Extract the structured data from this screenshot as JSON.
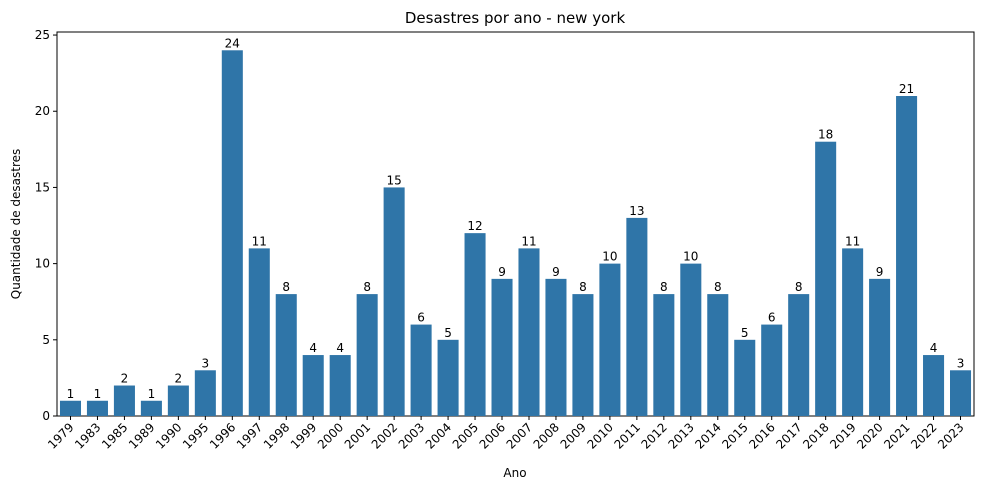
{
  "chart_data": {
    "type": "bar",
    "title": "Desastres por ano - new york",
    "xlabel": "Ano",
    "ylabel": "Quantidade de desastres",
    "ylim": [
      0,
      25.2
    ],
    "yticks": [
      0,
      5,
      10,
      15,
      20,
      25
    ],
    "grid": false,
    "bar_color": "#2f75a8",
    "categories": [
      "1979",
      "1983",
      "1985",
      "1989",
      "1990",
      "1995",
      "1996",
      "1997",
      "1998",
      "1999",
      "2000",
      "2001",
      "2002",
      "2003",
      "2004",
      "2005",
      "2006",
      "2007",
      "2008",
      "2009",
      "2010",
      "2011",
      "2012",
      "2013",
      "2014",
      "2015",
      "2016",
      "2017",
      "2018",
      "2019",
      "2020",
      "2021",
      "2022",
      "2023"
    ],
    "values": [
      1,
      1,
      2,
      1,
      2,
      3,
      24,
      11,
      8,
      4,
      4,
      8,
      15,
      6,
      5,
      12,
      9,
      11,
      9,
      8,
      10,
      13,
      8,
      10,
      8,
      5,
      6,
      8,
      18,
      11,
      9,
      21,
      4,
      3
    ]
  }
}
